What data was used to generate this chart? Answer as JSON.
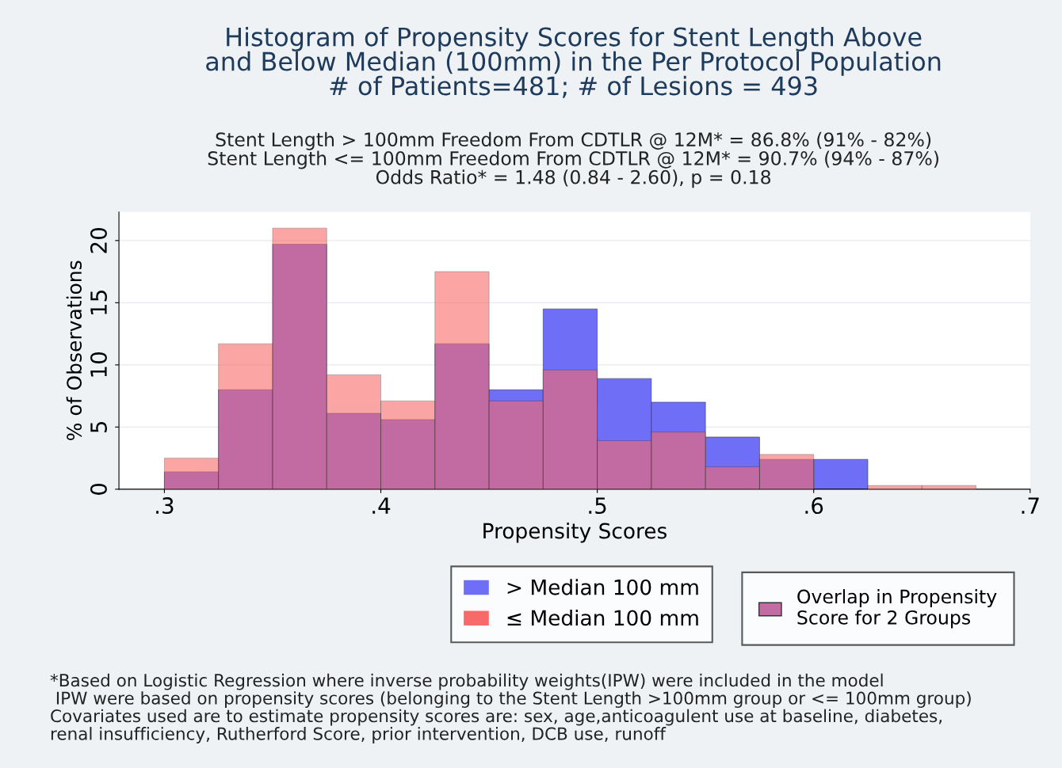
{
  "chart_data": {
    "type": "histogram",
    "title": "Histogram of Propensity Scores for Stent Length Above\nand Below Median (100mm) in the Per Protocol Population\n# of Patients=481; # of Lesions = 493",
    "subtitle": "Stent Length > 100mm Freedom From CDTLR @ 12M* = 86.8% (91% - 82%)\nStent Length <= 100mm Freedom From CDTLR @ 12M* = 90.7% (94% - 87%)\nOdds Ratio* = 1.48 (0.84 - 2.60), p = 0.18",
    "xlabel": "Propensity Scores",
    "ylabel": "% of Observations",
    "bins": [
      0.3,
      0.325,
      0.35,
      0.375,
      0.4,
      0.425,
      0.45,
      0.475,
      0.5,
      0.525,
      0.55,
      0.575,
      0.6,
      0.625,
      0.65,
      0.675
    ],
    "series": [
      {
        "name": "> Median 100 mm",
        "color": "#6e6ef7",
        "values": [
          1.4,
          8.0,
          19.7,
          6.1,
          5.6,
          11.7,
          8.0,
          14.5,
          8.9,
          7.0,
          4.2,
          2.4,
          2.4,
          0,
          0
        ]
      },
      {
        "name": "≤ Median 100 mm",
        "color": "#f86a6a",
        "values": [
          2.5,
          11.7,
          21.0,
          9.2,
          7.1,
          17.5,
          7.1,
          9.6,
          3.9,
          4.6,
          1.8,
          2.8,
          0,
          0.3,
          0.3
        ]
      }
    ],
    "xlim": [
      0.279,
      0.7
    ],
    "ylim": [
      0,
      22.3
    ],
    "xticks": [
      {
        "value": 0.3,
        "label": ".3"
      },
      {
        "value": 0.4,
        "label": ".4"
      },
      {
        "value": 0.5,
        "label": ".5"
      },
      {
        "value": 0.6,
        "label": ".6"
      },
      {
        "value": 0.7,
        "label": ".7"
      }
    ],
    "yticks": [
      0,
      5,
      10,
      15,
      20
    ],
    "grid": "y",
    "legend": "bottom",
    "annotations": [
      "Overlap in Propensity\nScore for 2 Groups",
      "*Based on Logistic Regression where inverse probability weights(IPW) were included in the model",
      " IPW were based on propensity scores (belonging to the Stent Length >100mm group or <= 100mm group)",
      "Covariates used are to estimate propensity scores are: sex, age,anticoagulent use at baseline, diabetes,",
      "renal insufficiency, Rutherford Score, prior intervention, DCB use, runoff"
    ]
  }
}
